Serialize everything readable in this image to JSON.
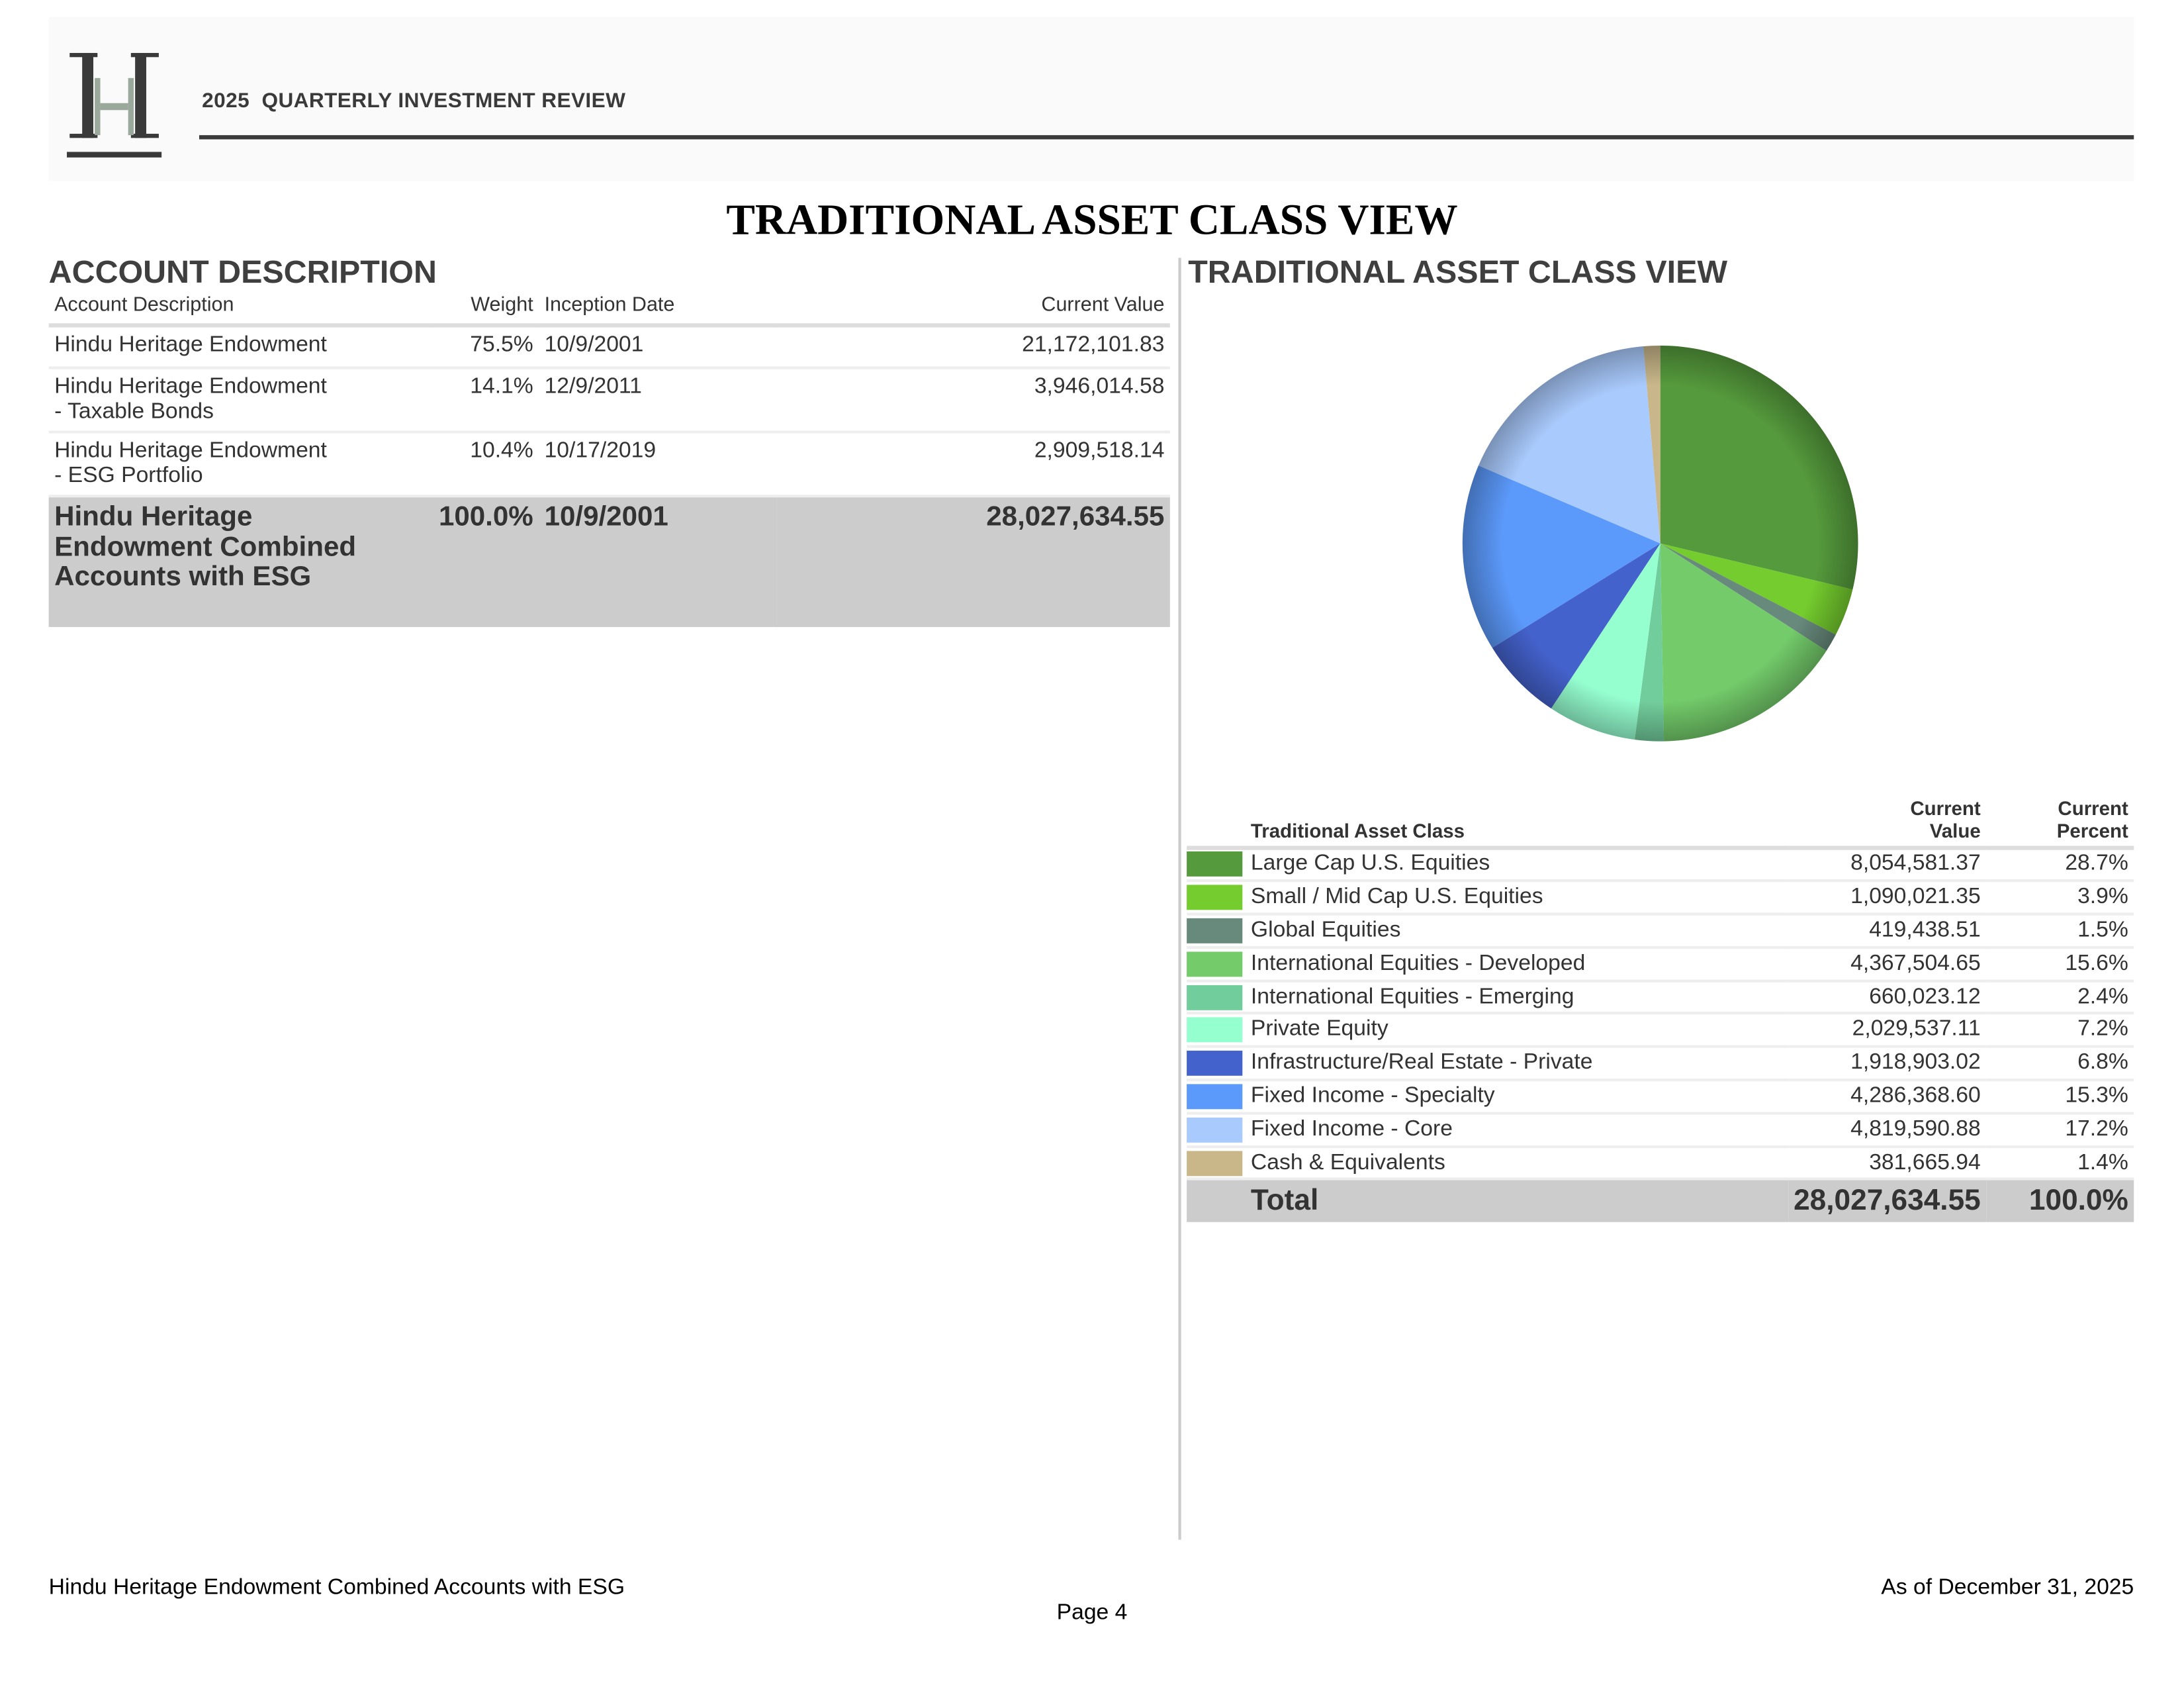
{
  "header": {
    "logo_letter": "H",
    "title": "2025  QUARTERLY INVESTMENT REVIEW"
  },
  "main_title": "TRADITIONAL ASSET CLASS VIEW",
  "account_section": {
    "title": "ACCOUNT DESCRIPTION",
    "columns": [
      "Account Description",
      "Weight",
      "Inception Date",
      "Current Value"
    ],
    "rows": [
      {
        "desc_line1": "Hindu Heritage Endowment",
        "desc_line2": "",
        "weight": "75.5%",
        "inception": "10/9/2001",
        "value": "21,172,101.83"
      },
      {
        "desc_line1": "Hindu Heritage Endowment",
        "desc_line2": "- Taxable Bonds",
        "weight": "14.1%",
        "inception": "12/9/2011",
        "value": "3,946,014.58"
      },
      {
        "desc_line1": "Hindu Heritage Endowment",
        "desc_line2": "- ESG Portfolio",
        "weight": "10.4%",
        "inception": "10/17/2019",
        "value": "2,909,518.14"
      }
    ],
    "total": {
      "desc": "Hindu Heritage Endowment Combined Accounts with ESG",
      "weight": "100.0%",
      "inception": "10/9/2001",
      "value": "28,027,634.55"
    }
  },
  "asset_section": {
    "title": "TRADITIONAL ASSET CLASS VIEW",
    "columns": {
      "asset_class": "Traditional Asset Class",
      "value_line1": "Current",
      "value_line2": "Value",
      "percent_line1": "Current",
      "percent_line2": "Percent"
    },
    "total": {
      "label": "Total",
      "value": "28,027,634.55",
      "percent": "100.0%"
    }
  },
  "chart_data": {
    "type": "pie",
    "start": "12 o'clock, clockwise",
    "categories": [
      "Large Cap U.S. Equities",
      "Small / Mid Cap U.S. Equities",
      "Global Equities",
      "International Equities - Developed",
      "International Equities - Emerging",
      "Private Equity",
      "Infrastructure/Real Estate - Private",
      "Fixed Income - Specialty",
      "Fixed Income - Core",
      "Cash & Equivalents"
    ],
    "values": [
      8054581.37,
      1090021.35,
      419438.51,
      4367504.65,
      660023.12,
      2029537.11,
      1918903.02,
      4286368.6,
      4819590.88,
      381665.94
    ],
    "value_labels": [
      "8,054,581.37",
      "1,090,021.35",
      "419,438.51",
      "4,367,504.65",
      "660,023.12",
      "2,029,537.11",
      "1,918,903.02",
      "4,286,368.60",
      "4,819,590.88",
      "381,665.94"
    ],
    "percents": [
      "28.7%",
      "3.9%",
      "1.5%",
      "15.6%",
      "2.4%",
      "7.2%",
      "6.8%",
      "15.3%",
      "17.2%",
      "1.4%"
    ],
    "colors": [
      "#559a3c",
      "#74cc2e",
      "#688a7c",
      "#73cb6a",
      "#72cd9c",
      "#95ffd0",
      "#4462cc",
      "#5b99fa",
      "#a9cafd",
      "#c9b78a"
    ]
  },
  "footer": {
    "left": "Hindu Heritage Endowment Combined Accounts with ESG",
    "center": "Page 4",
    "right": "As of December 31, 2025"
  }
}
